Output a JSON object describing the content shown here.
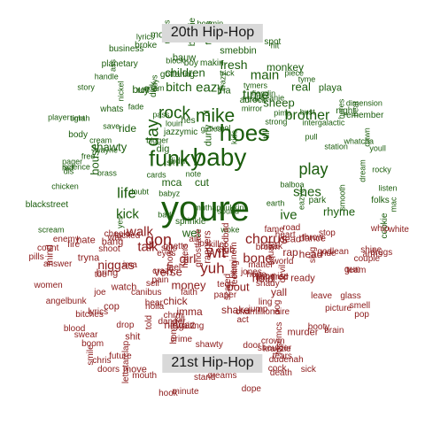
{
  "labels": {
    "top": "20th Hip-Hop",
    "bottom": "21st Hip-Hop"
  },
  "colors": {
    "top_group": "#1a5c0c",
    "bottom_group": "#8b1a1a"
  },
  "top_words": [
    [
      "youre",
      40
    ],
    [
      "baby",
      28
    ],
    [
      "hoes",
      26
    ],
    [
      "funky",
      25
    ],
    [
      "mike",
      21
    ],
    [
      "rock",
      19
    ],
    [
      "day",
      19
    ],
    [
      "play",
      18
    ],
    [
      "life",
      17
    ],
    [
      "brother",
      16
    ],
    [
      "shes",
      15
    ],
    [
      "time",
      16
    ],
    [
      "eazy",
      15
    ],
    [
      "kick",
      15
    ],
    [
      "ive",
      15
    ],
    [
      "main",
      15
    ],
    [
      "bitch",
      14
    ],
    [
      "fresh",
      14
    ],
    [
      "shawty",
      13
    ],
    [
      "house",
      13
    ],
    [
      "sheep",
      13
    ],
    [
      "real",
      13
    ],
    [
      "children",
      13
    ],
    [
      "wet",
      13
    ],
    [
      "rhyme",
      13
    ],
    [
      "buy",
      12
    ],
    [
      "ride",
      12
    ],
    [
      "monkey",
      12
    ],
    [
      "mca",
      12
    ],
    [
      "cut",
      12
    ],
    [
      "dig",
      11
    ],
    [
      "tha",
      11
    ],
    [
      "motherfucker",
      11
    ],
    [
      "smebbin",
      11
    ],
    [
      "bauw",
      11
    ],
    [
      "playa",
      11
    ],
    [
      "durty",
      11
    ],
    [
      "whats",
      10
    ],
    [
      "blackstreet",
      10
    ],
    [
      "gottaring",
      10
    ],
    [
      "makin",
      10
    ],
    [
      "body",
      10
    ],
    [
      "cookie",
      10
    ],
    [
      "sprinkle",
      10
    ],
    [
      "jazzymic",
      10
    ],
    [
      "business",
      10
    ],
    [
      "boy",
      10
    ],
    [
      "broke",
      10
    ],
    [
      "dick",
      10
    ],
    [
      "remember",
      10
    ],
    [
      "adrock",
      10
    ],
    [
      "spot",
      10
    ],
    [
      "beastie",
      10
    ],
    [
      "didnt",
      10
    ],
    [
      "hes",
      10
    ],
    [
      "night",
      10
    ],
    [
      "planetary",
      10
    ],
    [
      "park",
      10
    ],
    [
      "folks",
      10
    ],
    [
      "till",
      10
    ],
    [
      "roll",
      10
    ],
    [
      "sit",
      9
    ],
    [
      "yes",
      9
    ],
    [
      "bigger",
      9
    ],
    [
      "scream",
      9
    ],
    [
      "whatcha",
      9
    ],
    [
      "chicken",
      9
    ],
    [
      "science",
      9
    ],
    [
      "earth",
      9
    ],
    [
      "smooth",
      9
    ],
    [
      "boomin",
      9
    ],
    [
      "sunday",
      9
    ],
    [
      "handle",
      9
    ],
    [
      "player",
      9
    ],
    [
      "note",
      9
    ],
    [
      "rocky",
      9
    ],
    [
      "nickel",
      9
    ],
    [
      "mirror",
      9
    ],
    [
      "sound",
      9
    ],
    [
      "telling",
      9
    ],
    [
      "strong",
      9
    ],
    [
      "pimp",
      9
    ],
    [
      "dimension",
      9
    ],
    [
      "balboa",
      9
    ],
    [
      "woke",
      9
    ],
    [
      "heres",
      9
    ],
    [
      "beanie",
      9
    ],
    [
      "intergalactic",
      9
    ],
    [
      "dream",
      9
    ],
    [
      "pass",
      9
    ],
    [
      "hit",
      9
    ],
    [
      "crazy",
      9
    ],
    [
      "free",
      9
    ],
    [
      "tyme",
      9
    ],
    [
      "freak",
      9
    ],
    [
      "story",
      9
    ],
    [
      "dawn",
      9
    ],
    [
      "timah",
      9
    ],
    [
      "louin",
      9
    ],
    [
      "bust",
      9
    ],
    [
      "block",
      9
    ],
    [
      "eazye",
      9
    ],
    [
      "trick",
      9
    ],
    [
      "brass",
      9
    ],
    [
      "wayne",
      9
    ],
    [
      "listen",
      9
    ],
    [
      "dis",
      9
    ],
    [
      "guys",
      9
    ],
    [
      "youll",
      9
    ],
    [
      "piece",
      9
    ],
    [
      "red",
      9
    ],
    [
      "tymers",
      9
    ],
    [
      "kids",
      9
    ],
    [
      "babyz",
      9
    ],
    [
      "cool",
      9
    ],
    [
      "names",
      9
    ],
    [
      "bad",
      9
    ],
    [
      "beat",
      9
    ],
    [
      "ass",
      9
    ],
    [
      "adam",
      9
    ],
    [
      "station",
      9
    ],
    [
      "tight",
      9
    ],
    [
      "save",
      9
    ],
    [
      "cream",
      9
    ],
    [
      "friends",
      9
    ],
    [
      "ol",
      9
    ],
    [
      "vibe",
      9
    ],
    [
      "fade",
      9
    ],
    [
      "mac",
      9
    ],
    [
      "pull",
      9
    ],
    [
      "fiendin",
      9
    ],
    [
      "pager",
      9
    ],
    [
      "girlies",
      9
    ],
    [
      "lyrics",
      9
    ],
    [
      "doubt",
      9
    ],
    [
      "muthaphukkin",
      9
    ],
    [
      "cards",
      9
    ]
  ],
  "bottom_words": [
    [
      "gon",
      18
    ],
    [
      "wit",
      18
    ],
    [
      "yuh",
      17
    ],
    [
      "chorus",
      16
    ],
    [
      "bone",
      15
    ],
    [
      "walk",
      15
    ],
    [
      "talk",
      15
    ],
    [
      "niggas",
      14
    ],
    [
      "girl",
      14
    ],
    [
      "money",
      13
    ],
    [
      "hold",
      13
    ],
    [
      "bout",
      13
    ],
    [
      "verse",
      13
    ],
    [
      "shake",
      12
    ],
    [
      "yall",
      12
    ],
    [
      "rap",
      12
    ],
    [
      "head",
      12
    ],
    [
      "imma",
      12
    ],
    [
      "chick",
      12
    ],
    [
      "niggaz",
      12
    ],
    [
      "dance",
      11
    ],
    [
      "ready",
      11
    ],
    [
      "gun",
      11
    ],
    [
      "bang",
      11
    ],
    [
      "hate",
      11
    ],
    [
      "tryna",
      11
    ],
    [
      "bring",
      11
    ],
    [
      "watch",
      11
    ],
    [
      "cop",
      11
    ],
    [
      "murder",
      11
    ],
    [
      "club",
      11
    ],
    [
      "war",
      11
    ],
    [
      "move",
      11
    ],
    [
      "dead",
      11
    ],
    [
      "shit",
      11
    ],
    [
      "mind",
      11
    ],
    [
      "rappers",
      11
    ],
    [
      "rest",
      11
    ],
    [
      "kill",
      10
    ],
    [
      "act",
      10
    ],
    [
      "ima",
      10
    ],
    [
      "white",
      10
    ],
    [
      "hook",
      10
    ],
    [
      "fame",
      10
    ],
    [
      "brown",
      10
    ],
    [
      "shoot",
      10
    ],
    [
      "waiting",
      10
    ],
    [
      "death",
      10
    ],
    [
      "sell",
      10
    ],
    [
      "pop",
      10
    ],
    [
      "dudenah",
      10
    ],
    [
      "bitches",
      10
    ],
    [
      "ride",
      10
    ],
    [
      "drugs",
      10
    ],
    [
      "hundred",
      10
    ],
    [
      "enemy",
      10
    ],
    [
      "ghetto",
      10
    ],
    [
      "pain",
      10
    ],
    [
      "grind",
      10
    ],
    [
      "devil",
      10
    ],
    [
      "beminem",
      10
    ],
    [
      "booty",
      10
    ],
    [
      "blood",
      10
    ],
    [
      "hoodbad",
      10
    ],
    [
      "holla",
      10
    ],
    [
      "boom",
      10
    ],
    [
      "lost",
      10
    ],
    [
      "matter",
      10
    ],
    [
      "haters",
      10
    ],
    [
      "paper",
      10
    ],
    [
      "shady",
      10
    ],
    [
      "mouth",
      10
    ],
    [
      "losemcs",
      10
    ],
    [
      "heart",
      10
    ],
    [
      "feeling",
      10
    ],
    [
      "stand",
      10
    ],
    [
      "chris",
      10
    ],
    [
      "pills",
      10
    ],
    [
      "tears",
      10
    ],
    [
      "answer",
      10
    ],
    [
      "throw",
      10
    ],
    [
      "leave",
      10
    ],
    [
      "world",
      10
    ],
    [
      "eyes",
      10
    ],
    [
      "drop",
      10
    ],
    [
      "air",
      10
    ],
    [
      "crazy",
      10
    ],
    [
      "whip",
      10
    ],
    [
      "brain",
      10
    ],
    [
      "faith",
      10
    ],
    [
      "doors",
      10
    ],
    [
      "hope",
      10
    ],
    [
      "snow",
      10
    ],
    [
      "cheeks",
      10
    ],
    [
      "stop",
      10
    ],
    [
      "homie",
      10
    ],
    [
      "killer",
      10
    ],
    [
      "road",
      10
    ],
    [
      "chamillionaire",
      10
    ],
    [
      "smile",
      10
    ],
    [
      "godlean",
      10
    ],
    [
      "couple",
      10
    ],
    [
      "team",
      10
    ],
    [
      "squad",
      10
    ],
    [
      "promise",
      10
    ],
    [
      "women",
      10
    ],
    [
      "dreams",
      10
    ],
    [
      "shawty",
      10
    ],
    [
      "feel",
      10
    ],
    [
      "future",
      10
    ],
    [
      "jones",
      10
    ],
    [
      "canibus",
      10
    ],
    [
      "arms",
      10
    ],
    [
      "swear",
      10
    ],
    [
      "ghostface",
      10
    ],
    [
      "scared",
      10
    ],
    [
      "solo",
      10
    ],
    [
      "minute",
      10
    ],
    [
      "count",
      10
    ],
    [
      "slug",
      10
    ],
    [
      "smell",
      10
    ],
    [
      "glass",
      10
    ],
    [
      "angel",
      10
    ],
    [
      "break",
      10
    ],
    [
      "fire",
      10
    ],
    [
      "dog",
      10
    ],
    [
      "hear",
      10
    ],
    [
      "jump",
      10
    ],
    [
      "told",
      10
    ],
    [
      "picture",
      10
    ],
    [
      "lettstarclap",
      10
    ],
    [
      "crown",
      10
    ],
    [
      "dope",
      10
    ],
    [
      "locked",
      10
    ],
    [
      "sick",
      10
    ],
    [
      "danger",
      10
    ],
    [
      "shoulder",
      10
    ],
    [
      "krayzie",
      10
    ],
    [
      "toe",
      10
    ],
    [
      "shine",
      10
    ],
    [
      "joe",
      10
    ],
    [
      "tech",
      10
    ],
    [
      "cock",
      10
    ],
    [
      "bunk",
      10
    ],
    [
      "crime",
      10
    ],
    [
      "door",
      10
    ],
    [
      "ling",
      10
    ],
    [
      "lyrics",
      10
    ],
    [
      "chrm",
      10
    ]
  ]
}
